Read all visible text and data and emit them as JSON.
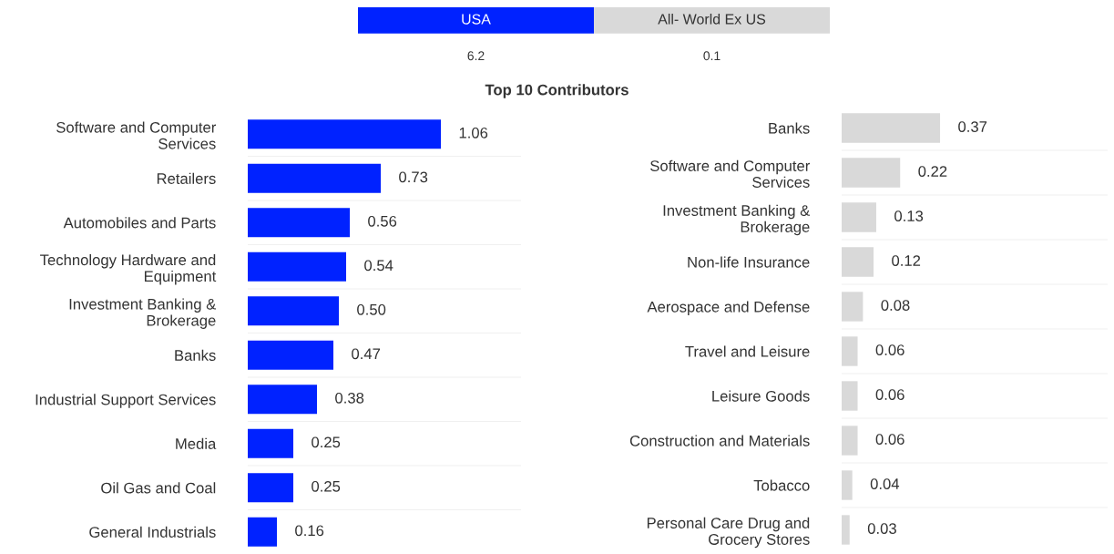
{
  "chart_data": [
    {
      "type": "other",
      "categories": [
        "USA",
        "All- World Ex US"
      ],
      "values": [
        6.2,
        0.1
      ],
      "colors": [
        "#0022ff",
        "#d9d9d9"
      ],
      "data_labels": true
    },
    {
      "type": "bar",
      "orientation": "horizontal",
      "title": "Top 10 Contributors",
      "categories": [
        "Software and Computer\nServices",
        "Retailers",
        "Automobiles and Parts",
        "Technology Hardware and\nEquipment",
        "Investment Banking &\nBrokerage",
        "Banks",
        "Industrial Support Services",
        "Media",
        "Oil Gas and Coal",
        "General Industrials"
      ],
      "values": [
        1.06,
        0.73,
        0.56,
        0.54,
        0.5,
        0.47,
        0.38,
        0.25,
        0.25,
        0.16
      ],
      "value_labels": [
        "1.06",
        "0.73",
        "0.56",
        "0.54",
        "0.50",
        "0.47",
        "0.38",
        "0.25",
        "0.25",
        "0.16"
      ],
      "color": "#0022ff",
      "xlim": [
        0,
        1.5
      ]
    },
    {
      "type": "bar",
      "orientation": "horizontal",
      "categories": [
        "Banks",
        "Software and Computer\nServices",
        "Investment Banking &\nBrokerage",
        "Non-life Insurance",
        "Aerospace and Defense",
        "Travel and Leisure",
        "Leisure Goods",
        "Construction and Materials",
        "Tobacco",
        "Personal Care Drug and\nGrocery Stores"
      ],
      "values": [
        0.37,
        0.22,
        0.13,
        0.12,
        0.08,
        0.06,
        0.06,
        0.06,
        0.04,
        0.03
      ],
      "value_labels": [
        "0.37",
        "0.22",
        "0.13",
        "0.12",
        "0.08",
        "0.06",
        "0.06",
        "0.06",
        "0.04",
        "0.03"
      ],
      "color": "#d9d9d9",
      "xlim": [
        0,
        1.0
      ]
    }
  ]
}
